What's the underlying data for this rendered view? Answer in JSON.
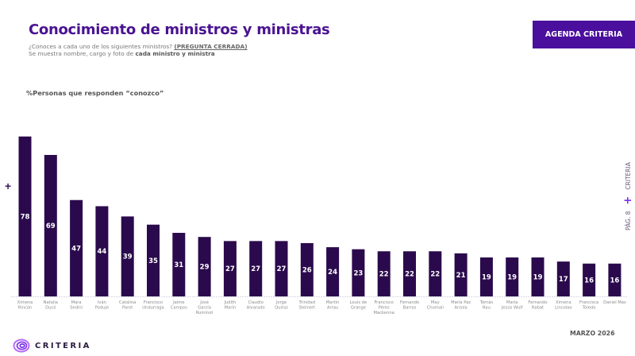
{
  "header": {
    "title": "Conocimiento de ministros y ministras",
    "subtitle_line1_prefix": "¿Conoces a cada uno de los siguientes ministros? ",
    "subtitle_line1_underlined": "(PREGUNTA CERRADA)",
    "subtitle_line2_prefix": "Se muestra nombre, cargo y foto de ",
    "subtitle_line2_bold": "cada ministro y ministra",
    "badge": "AGENDA CRITERIA"
  },
  "side_label": {
    "page": "PÁG. 8",
    "brand": "CRITERIA"
  },
  "footer": {
    "logo_text": "CRITERIA",
    "date": "MARZO 2026"
  },
  "colors": {
    "accent": "#4b0f9e",
    "bar": "#2a0a4c",
    "title": "#4a1391"
  },
  "chart_data": {
    "type": "bar",
    "title": "%Personas que responden “conozco”",
    "xlabel": "",
    "ylabel": "",
    "ylim": [
      0,
      80
    ],
    "grid": false,
    "legend": "none",
    "categories": [
      [
        "Ximena",
        "Rincón"
      ],
      [
        "Natalia",
        "Ducó"
      ],
      [
        "Mara",
        "Sedini"
      ],
      [
        "Iván",
        "Poduje"
      ],
      [
        "Catalina",
        "Parot"
      ],
      [
        "Francisco",
        "Undurraga"
      ],
      [
        "Jaime",
        "Campos"
      ],
      [
        "José",
        "García",
        "Ruminot"
      ],
      [
        "Judith",
        "Marín"
      ],
      [
        "Claudio",
        "Alvarado"
      ],
      [
        "Jorge",
        "Quiroz"
      ],
      [
        "Trinidad",
        "Steinert"
      ],
      [
        "Martín",
        "Arrau"
      ],
      [
        "Louis de",
        "Grange"
      ],
      [
        "Francisco",
        "Pérez",
        "Mackenna"
      ],
      [
        "Fernando",
        "Barros"
      ],
      [
        "May",
        "Chomali"
      ],
      [
        "María Paz",
        "Arzola"
      ],
      [
        "Tomás",
        "Rau"
      ],
      [
        "María",
        "Jesús Wulf"
      ],
      [
        "Fernando",
        "Rabat"
      ],
      [
        "Ximena",
        "Lincolao"
      ],
      [
        "Francisca",
        "Toledo"
      ],
      [
        "Daniel Mas"
      ]
    ],
    "values": [
      78,
      69,
      47,
      44,
      39,
      35,
      31,
      29,
      27,
      27,
      27,
      26,
      24,
      23,
      22,
      22,
      22,
      21,
      19,
      19,
      19,
      17,
      16,
      16
    ]
  }
}
